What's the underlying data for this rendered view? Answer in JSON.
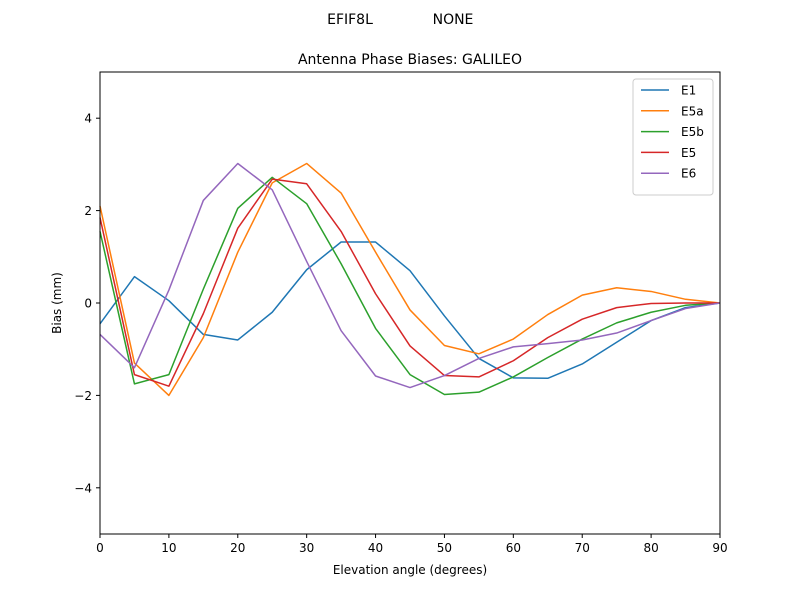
{
  "figure": {
    "header_left": "EFIF8L",
    "header_right": "NONE"
  },
  "chart_data": {
    "type": "line",
    "title": "Antenna Phase Biases: GALILEO",
    "xlabel": "Elevation angle (degrees)",
    "ylabel": "Bias (mm)",
    "xlim": [
      0,
      90
    ],
    "ylim": [
      -5,
      5
    ],
    "xticks": [
      0,
      10,
      20,
      30,
      40,
      50,
      60,
      70,
      80,
      90
    ],
    "yticks": [
      -4,
      -2,
      0,
      2,
      4
    ],
    "ytick_labels": [
      "−4",
      "−2",
      "0",
      "2",
      "4"
    ],
    "grid": false,
    "legend_position": "top-right",
    "x": [
      0,
      5,
      10,
      15,
      20,
      25,
      30,
      35,
      40,
      45,
      50,
      55,
      60,
      65,
      70,
      75,
      80,
      85,
      90
    ],
    "series": [
      {
        "name": "E1",
        "color": "#1f77b4",
        "values": [
          -0.45,
          0.57,
          0.05,
          -0.68,
          -0.8,
          -0.2,
          0.72,
          1.32,
          1.32,
          0.7,
          -0.28,
          -1.2,
          -1.62,
          -1.63,
          -1.32,
          -0.85,
          -0.38,
          -0.1,
          0.0
        ]
      },
      {
        "name": "E5a",
        "color": "#ff7f0e",
        "values": [
          2.1,
          -1.3,
          -2.0,
          -0.75,
          1.1,
          2.6,
          3.02,
          2.38,
          1.1,
          -0.15,
          -0.92,
          -1.1,
          -0.78,
          -0.25,
          0.17,
          0.33,
          0.25,
          0.08,
          0.0
        ]
      },
      {
        "name": "E5b",
        "color": "#2ca02c",
        "values": [
          1.55,
          -1.75,
          -1.55,
          0.3,
          2.05,
          2.72,
          2.15,
          0.85,
          -0.55,
          -1.55,
          -1.98,
          -1.93,
          -1.6,
          -1.18,
          -0.78,
          -0.43,
          -0.2,
          -0.05,
          0.0
        ]
      },
      {
        "name": "E5",
        "color": "#d62728",
        "values": [
          1.85,
          -1.55,
          -1.8,
          -0.23,
          1.62,
          2.68,
          2.58,
          1.55,
          0.2,
          -0.93,
          -1.57,
          -1.6,
          -1.25,
          -0.75,
          -0.35,
          -0.1,
          -0.01,
          0.0,
          0.0
        ]
      },
      {
        "name": "E6",
        "color": "#9467bd",
        "values": [
          -0.68,
          -1.4,
          0.28,
          2.22,
          3.02,
          2.45,
          0.9,
          -0.6,
          -1.58,
          -1.83,
          -1.57,
          -1.2,
          -0.95,
          -0.88,
          -0.8,
          -0.65,
          -0.38,
          -0.12,
          0.0
        ]
      }
    ]
  }
}
